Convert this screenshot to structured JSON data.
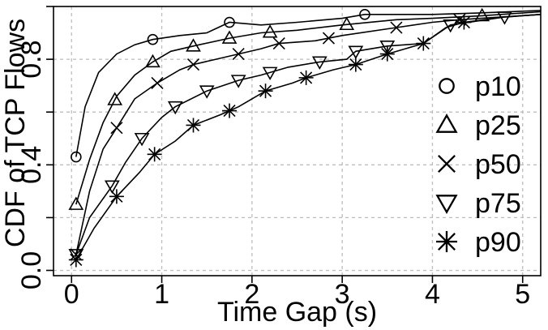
{
  "chart_data": {
    "type": "line",
    "title": "",
    "xlabel": "Time Gap (s)",
    "ylabel": "CDF of TCP Flows",
    "xlim": [
      -0.2,
      5.2
    ],
    "ylim": [
      -0.02,
      1.0
    ],
    "x_ticks": [
      0,
      1,
      2,
      3,
      4,
      5
    ],
    "x_tick_labels": [
      "0",
      "1",
      "2",
      "3",
      "4",
      "5"
    ],
    "y_ticks": [
      0.0,
      0.2,
      0.4,
      0.6,
      0.8,
      1.0
    ],
    "y_tick_labels": [
      "0.0",
      "",
      "0.4",
      "",
      "0.8",
      ""
    ],
    "grid": true,
    "legend_position": "right",
    "series": [
      {
        "name": "p10",
        "marker": "circle",
        "points": [
          [
            0.05,
            0.43
          ],
          [
            0.15,
            0.62
          ],
          [
            0.3,
            0.75
          ],
          [
            0.5,
            0.82
          ],
          [
            0.7,
            0.855
          ],
          [
            0.9,
            0.875
          ],
          [
            1.2,
            0.89
          ],
          [
            1.5,
            0.9
          ],
          [
            1.75,
            0.94
          ],
          [
            2.1,
            0.93
          ],
          [
            2.5,
            0.94
          ],
          [
            3.0,
            0.955
          ],
          [
            3.25,
            0.97
          ],
          [
            3.5,
            0.97
          ],
          [
            4.0,
            0.97
          ],
          [
            4.5,
            0.975
          ],
          [
            5.2,
            0.985
          ]
        ],
        "marker_x": [
          0.05,
          0.9,
          1.75,
          3.25
        ]
      },
      {
        "name": "p25",
        "marker": "triangle-up",
        "points": [
          [
            0.05,
            0.25
          ],
          [
            0.2,
            0.42
          ],
          [
            0.35,
            0.56
          ],
          [
            0.5,
            0.66
          ],
          [
            0.7,
            0.74
          ],
          [
            0.9,
            0.79
          ],
          [
            1.1,
            0.83
          ],
          [
            1.35,
            0.85
          ],
          [
            1.75,
            0.88
          ],
          [
            2.1,
            0.9
          ],
          [
            2.5,
            0.91
          ],
          [
            3.0,
            0.93
          ],
          [
            3.6,
            0.95
          ],
          [
            4.0,
            0.955
          ],
          [
            4.55,
            0.965
          ],
          [
            5.2,
            0.98
          ]
        ],
        "marker_x": [
          0.05,
          0.48,
          0.9,
          1.35,
          1.75,
          2.2,
          3.05,
          4.55
        ]
      },
      {
        "name": "p50",
        "marker": "cross",
        "points": [
          [
            0.05,
            0.06
          ],
          [
            0.2,
            0.3
          ],
          [
            0.35,
            0.46
          ],
          [
            0.5,
            0.54
          ],
          [
            0.7,
            0.65
          ],
          [
            0.95,
            0.71
          ],
          [
            1.2,
            0.76
          ],
          [
            1.35,
            0.78
          ],
          [
            1.6,
            0.8
          ],
          [
            1.85,
            0.82
          ],
          [
            2.1,
            0.84
          ],
          [
            2.3,
            0.86
          ],
          [
            2.7,
            0.87
          ],
          [
            3.0,
            0.89
          ],
          [
            3.6,
            0.92
          ],
          [
            4.0,
            0.94
          ],
          [
            4.3,
            0.95
          ],
          [
            5.2,
            0.97
          ]
        ],
        "marker_x": [
          0.05,
          0.5,
          0.95,
          1.35,
          1.85,
          2.3,
          2.85,
          3.6,
          4.3
        ]
      },
      {
        "name": "p75",
        "marker": "triangle-down",
        "points": [
          [
            0.05,
            0.06
          ],
          [
            0.2,
            0.2
          ],
          [
            0.45,
            0.32
          ],
          [
            0.6,
            0.41
          ],
          [
            0.78,
            0.5
          ],
          [
            1.0,
            0.58
          ],
          [
            1.15,
            0.62
          ],
          [
            1.5,
            0.68
          ],
          [
            1.85,
            0.72
          ],
          [
            2.1,
            0.74
          ],
          [
            2.4,
            0.77
          ],
          [
            2.75,
            0.79
          ],
          [
            3.05,
            0.8
          ],
          [
            3.15,
            0.83
          ],
          [
            3.5,
            0.85
          ],
          [
            3.9,
            0.86
          ],
          [
            4.2,
            0.93
          ],
          [
            4.8,
            0.96
          ],
          [
            5.2,
            0.97
          ]
        ],
        "marker_x": [
          0.05,
          0.45,
          0.78,
          1.15,
          1.5,
          1.85,
          2.2,
          2.75,
          3.15,
          3.5,
          4.2,
          4.8
        ]
      },
      {
        "name": "p90",
        "marker": "asterisk",
        "points": [
          [
            0.05,
            0.04
          ],
          [
            0.25,
            0.16
          ],
          [
            0.5,
            0.28
          ],
          [
            0.75,
            0.37
          ],
          [
            0.92,
            0.44
          ],
          [
            1.15,
            0.49
          ],
          [
            1.35,
            0.55
          ],
          [
            1.65,
            0.59
          ],
          [
            1.85,
            0.62
          ],
          [
            2.15,
            0.68
          ],
          [
            2.45,
            0.71
          ],
          [
            2.6,
            0.73
          ],
          [
            2.9,
            0.76
          ],
          [
            3.15,
            0.78
          ],
          [
            3.5,
            0.82
          ],
          [
            3.7,
            0.84
          ],
          [
            3.9,
            0.86
          ],
          [
            4.15,
            0.92
          ],
          [
            4.35,
            0.94
          ],
          [
            4.8,
            0.96
          ],
          [
            5.2,
            0.97
          ]
        ],
        "marker_x": [
          0.05,
          0.5,
          0.92,
          1.35,
          1.75,
          2.15,
          2.6,
          3.15,
          3.5,
          3.9,
          4.35
        ]
      }
    ]
  }
}
